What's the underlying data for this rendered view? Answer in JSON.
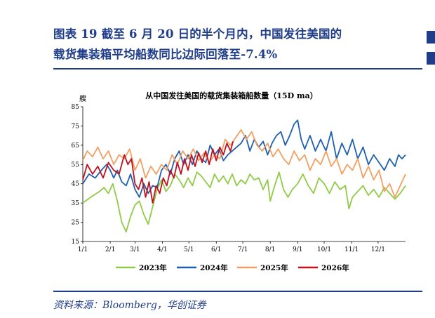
{
  "header": {
    "title_line1": "图表 19   截至 6 月 20 日的半个月内，中国发往美国的",
    "title_line2": "载货集装箱平均船数同比边际回落至-7.4%"
  },
  "source": "资料来源：Bloomberg，华创证券",
  "colors": {
    "accent": "#1f3d8a",
    "s2023": "#8fcb45",
    "s2024": "#1f5fae",
    "s2025": "#f2a062",
    "s2026": "#c0111f"
  },
  "chart_data": {
    "type": "line",
    "title": "从中国发往美国的载货集装箱船数量（15D ma）",
    "ylabel": "艘",
    "ylim": [
      15,
      85
    ],
    "yticks": [
      15,
      25,
      35,
      45,
      55,
      65,
      75,
      85
    ],
    "xlim": [
      1,
      366
    ],
    "xticks": [
      {
        "label": "1/1",
        "day": 1
      },
      {
        "label": "2/1",
        "day": 32
      },
      {
        "label": "3/1",
        "day": 60
      },
      {
        "label": "4/1",
        "day": 91
      },
      {
        "label": "5/1",
        "day": 121
      },
      {
        "label": "6/1",
        "day": 152
      },
      {
        "label": "7/1",
        "day": 182
      },
      {
        "label": "8/1",
        "day": 213
      },
      {
        "label": "9/1",
        "day": 244
      },
      {
        "label": "10/1",
        "day": 274
      },
      {
        "label": "11/1",
        "day": 305
      },
      {
        "label": "12/1",
        "day": 335
      }
    ],
    "legend_position": "bottom",
    "series": [
      {
        "name": "2023年",
        "color": "#8fcb45",
        "x": [
          1,
          10,
          20,
          25,
          30,
          35,
          40,
          45,
          50,
          55,
          60,
          65,
          70,
          75,
          80,
          85,
          90,
          95,
          100,
          105,
          110,
          115,
          120,
          125,
          130,
          135,
          140,
          145,
          150,
          155,
          160,
          165,
          170,
          175,
          180,
          185,
          190,
          195,
          200,
          205,
          210,
          213,
          218,
          223,
          228,
          233,
          238,
          244,
          250,
          256,
          262,
          268,
          274,
          280,
          286,
          292,
          298,
          302,
          306,
          312,
          318,
          324,
          330,
          336,
          342,
          348,
          354,
          360,
          366
        ],
        "y": [
          35,
          38,
          41,
          43,
          40,
          45,
          36,
          25,
          20,
          28,
          34,
          36,
          29,
          24,
          33,
          42,
          47,
          41,
          44,
          50,
          47,
          43,
          48,
          44,
          51,
          49,
          46,
          43,
          50,
          46,
          49,
          45,
          50,
          44,
          47,
          45,
          50,
          47,
          48,
          42,
          47,
          36,
          44,
          51,
          42,
          38,
          42,
          45,
          50,
          44,
          40,
          48,
          45,
          40,
          46,
          42,
          44,
          32,
          38,
          41,
          44,
          39,
          42,
          38,
          43,
          40,
          37,
          40,
          44
        ]
      },
      {
        "name": "2024年",
        "color": "#1f5fae",
        "x": [
          1,
          8,
          15,
          22,
          28,
          32,
          36,
          40,
          45,
          50,
          55,
          60,
          65,
          70,
          75,
          80,
          85,
          90,
          95,
          100,
          105,
          110,
          115,
          120,
          125,
          130,
          135,
          140,
          145,
          150,
          155,
          160,
          165,
          170,
          175,
          180,
          185,
          190,
          195,
          200,
          205,
          210,
          215,
          220,
          225,
          230,
          235,
          240,
          244,
          248,
          252,
          258,
          264,
          270,
          276,
          282,
          288,
          294,
          300,
          306,
          312,
          318,
          324,
          330,
          336,
          342,
          348,
          354,
          358,
          362,
          366
        ],
        "y": [
          45,
          50,
          48,
          52,
          55,
          52,
          48,
          52,
          46,
          44,
          50,
          42,
          38,
          45,
          40,
          44,
          43,
          52,
          55,
          50,
          58,
          62,
          55,
          60,
          55,
          62,
          58,
          56,
          65,
          60,
          63,
          57,
          60,
          62,
          64,
          66,
          70,
          62,
          68,
          64,
          67,
          60,
          66,
          70,
          72,
          65,
          70,
          76,
          78,
          68,
          63,
          70,
          62,
          68,
          62,
          72,
          58,
          66,
          60,
          68,
          58,
          64,
          55,
          60,
          56,
          52,
          58,
          54,
          60,
          58,
          60
        ]
      },
      {
        "name": "2025年",
        "color": "#f2a062",
        "x": [
          1,
          6,
          12,
          18,
          24,
          30,
          36,
          42,
          48,
          54,
          60,
          66,
          72,
          78,
          84,
          90,
          96,
          102,
          108,
          114,
          120,
          126,
          132,
          138,
          144,
          150,
          156,
          162,
          168,
          174,
          180,
          186,
          192,
          198,
          204,
          210,
          216,
          222,
          228,
          234,
          240,
          246,
          252,
          258,
          264,
          270,
          276,
          282,
          288,
          294,
          300,
          306,
          312,
          318,
          324,
          330,
          336,
          342,
          348,
          354,
          360,
          366
        ],
        "y": [
          57,
          62,
          59,
          64,
          58,
          62,
          55,
          60,
          58,
          63,
          52,
          58,
          48,
          54,
          50,
          55,
          52,
          60,
          55,
          62,
          58,
          63,
          57,
          61,
          56,
          60,
          58,
          68,
          65,
          69,
          73,
          68,
          72,
          65,
          62,
          66,
          59,
          63,
          58,
          55,
          62,
          57,
          60,
          52,
          58,
          55,
          62,
          54,
          58,
          50,
          55,
          52,
          58,
          48,
          54,
          47,
          52,
          41,
          45,
          38,
          44,
          50
        ]
      },
      {
        "name": "2026年",
        "color": "#c0111f",
        "x": [
          1,
          6,
          12,
          18,
          24,
          30,
          36,
          42,
          48,
          52,
          56,
          60,
          64,
          68,
          72,
          76,
          80,
          84,
          88,
          92,
          96,
          100,
          104,
          108,
          112,
          116,
          120,
          124,
          128,
          132,
          136,
          140,
          144,
          148,
          152,
          156,
          160,
          164,
          168,
          171
        ],
        "y": [
          47,
          55,
          50,
          54,
          48,
          56,
          52,
          50,
          60,
          55,
          58,
          45,
          42,
          48,
          38,
          46,
          35,
          44,
          40,
          48,
          44,
          52,
          48,
          56,
          50,
          58,
          52,
          60,
          54,
          61,
          56,
          62,
          55,
          63,
          57,
          64,
          60,
          66,
          62,
          67
        ]
      }
    ]
  }
}
